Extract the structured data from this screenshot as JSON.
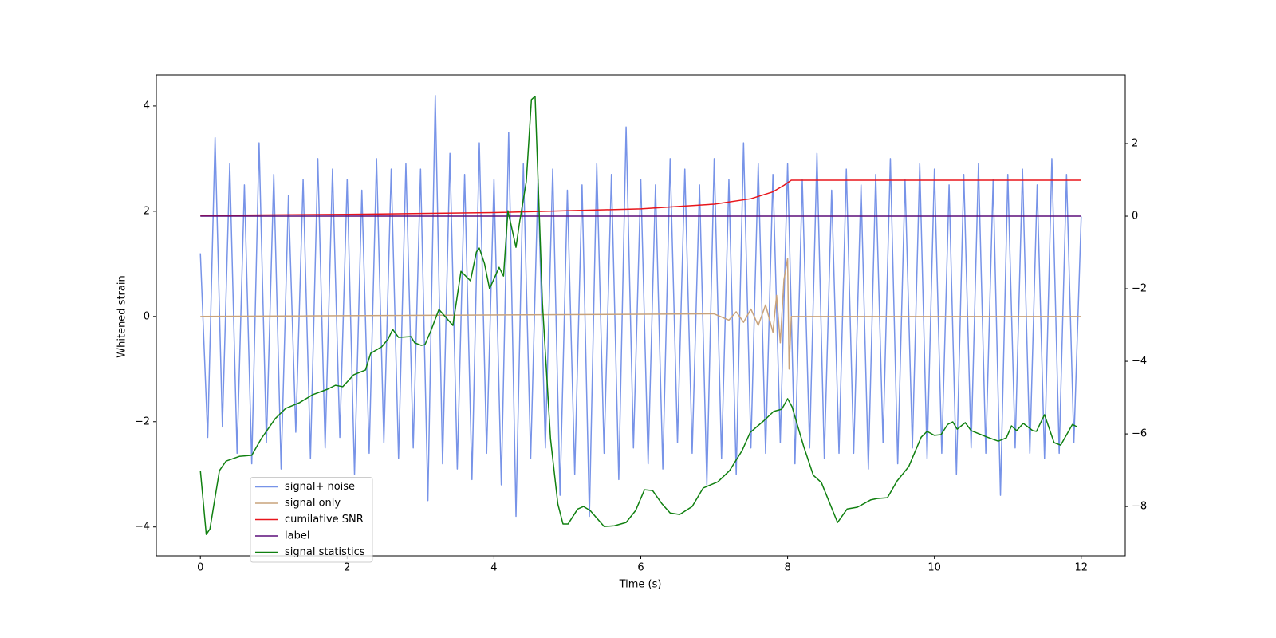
{
  "chart_data": {
    "type": "line",
    "xlabel": "Time (s)",
    "ylabel": "Whitened strain",
    "xlim": [
      -0.6,
      12.6
    ],
    "xticks": [
      0,
      2,
      4,
      6,
      8,
      10,
      12
    ],
    "ylim": [
      -4.55,
      4.59
    ],
    "yticks": [
      {
        "value": -4,
        "label": "−4"
      },
      {
        "value": -2,
        "label": "−2"
      },
      0,
      2,
      4
    ],
    "y2lim": [
      -9.36,
      3.89
    ],
    "y2ticks": [
      {
        "value": -8,
        "label": "−8"
      },
      {
        "value": -6,
        "label": "−6"
      },
      {
        "value": -4,
        "label": "−4"
      },
      {
        "value": -2,
        "label": "−2"
      },
      0,
      2
    ],
    "legend": "lower left",
    "series": [
      {
        "name": "signal+ noise",
        "color": "#7793e8",
        "x": [
          0,
          0.1,
          0.2,
          0.3,
          0.4,
          0.5,
          0.6,
          0.7,
          0.8,
          0.9,
          1,
          1.1,
          1.2,
          1.3,
          1.4,
          1.5,
          1.6,
          1.7,
          1.8,
          1.9,
          2,
          2.1,
          2.2,
          2.3,
          2.4,
          2.5,
          2.6,
          2.7,
          2.8,
          2.9,
          3,
          3.1,
          3.2,
          3.3,
          3.4,
          3.5,
          3.6,
          3.7,
          3.8,
          3.9,
          4,
          4.1,
          4.2,
          4.3,
          4.4,
          4.5,
          4.6,
          4.7,
          4.8,
          4.9,
          5,
          5.1,
          5.2,
          5.3,
          5.4,
          5.5,
          5.6,
          5.7,
          5.8,
          5.9,
          6,
          6.1,
          6.2,
          6.3,
          6.4,
          6.5,
          6.6,
          6.7,
          6.8,
          6.9,
          7,
          7.1,
          7.2,
          7.3,
          7.4,
          7.5,
          7.6,
          7.7,
          7.8,
          7.9,
          8,
          8.1,
          8.2,
          8.3,
          8.4,
          8.5,
          8.6,
          8.7,
          8.8,
          8.9,
          9,
          9.1,
          9.2,
          9.3,
          9.4,
          9.5,
          9.6,
          9.7,
          9.8,
          9.9,
          10,
          10.1,
          10.2,
          10.3,
          10.4,
          10.5,
          10.6,
          10.7,
          10.8,
          10.9,
          11,
          11.1,
          11.2,
          11.3,
          11.4,
          11.5,
          11.6,
          11.7,
          11.8,
          11.9,
          12
        ],
        "values": [
          1.2,
          -2.3,
          3.4,
          -2.1,
          2.9,
          -2.6,
          2.5,
          -2.8,
          3.3,
          -2.4,
          2.7,
          -2.9,
          2.3,
          -2.2,
          2.6,
          -2.7,
          3.0,
          -2.5,
          2.8,
          -2.3,
          2.6,
          -3.0,
          2.4,
          -2.6,
          3.0,
          -2.4,
          2.8,
          -2.7,
          2.9,
          -2.5,
          2.8,
          -3.5,
          4.2,
          -2.8,
          3.1,
          -2.9,
          2.7,
          -3.1,
          3.3,
          -2.6,
          2.6,
          -3.2,
          3.5,
          -3.8,
          2.9,
          -2.7,
          2.6,
          -2.5,
          2.8,
          -3.4,
          2.4,
          -3.0,
          2.5,
          -3.8,
          2.9,
          -2.6,
          2.7,
          -3.1,
          3.6,
          -2.5,
          2.6,
          -2.8,
          2.5,
          -2.9,
          3.0,
          -2.4,
          2.8,
          -2.6,
          2.5,
          -3.2,
          3.0,
          -2.7,
          2.6,
          -3.0,
          3.3,
          -2.5,
          2.9,
          -2.6,
          2.7,
          -2.4,
          2.9,
          -2.8,
          2.6,
          -2.5,
          3.1,
          -2.7,
          2.4,
          -2.6,
          2.8,
          -2.6,
          2.5,
          -2.9,
          2.7,
          -2.4,
          3.0,
          -2.8,
          2.6,
          -2.5,
          2.9,
          -2.7,
          2.8,
          -2.6,
          2.5,
          -3.0,
          2.7,
          -2.5,
          2.9,
          -2.6,
          2.6,
          -3.4,
          2.7,
          -2.5,
          2.8,
          -2.6,
          2.5,
          -2.7,
          3.0,
          -2.6,
          2.7,
          -2.4,
          1.9
        ]
      },
      {
        "name": "signal only",
        "color": "#c9a37b",
        "x": [
          0,
          7,
          7.2,
          7.3,
          7.4,
          7.5,
          7.6,
          7.7,
          7.8,
          7.85,
          7.9,
          7.95,
          8.0,
          8.02,
          8.05,
          12
        ],
        "values": [
          0,
          0.05,
          -0.07,
          0.09,
          -0.11,
          0.14,
          -0.17,
          0.22,
          -0.3,
          0.4,
          -0.5,
          0.7,
          1.1,
          -1,
          0,
          0
        ]
      },
      {
        "name": "cumilative SNR",
        "color": "#e8151b",
        "axis": "y2",
        "x": [
          0,
          2,
          4,
          6,
          7,
          7.5,
          7.8,
          7.95,
          8.05,
          12
        ],
        "values": [
          0.02,
          0.05,
          0.1,
          0.2,
          0.33,
          0.48,
          0.67,
          0.85,
          0.99,
          0.99
        ]
      },
      {
        "name": "label",
        "color": "#5c0f7a",
        "axis": "y2",
        "x": [
          0,
          12
        ],
        "values": [
          0,
          0
        ]
      },
      {
        "name": "signal statistics",
        "color": "#108010",
        "axis": "y2",
        "x": [
          0,
          0.08,
          0.13,
          0.26,
          0.35,
          0.53,
          0.7,
          0.83,
          1.02,
          1.16,
          1.35,
          1.53,
          1.73,
          1.84,
          1.94,
          2.09,
          2.25,
          2.32,
          2.47,
          2.56,
          2.62,
          2.7,
          2.87,
          2.92,
          3.01,
          3.06,
          3.14,
          3.25,
          3.44,
          3.55,
          3.68,
          3.76,
          3.8,
          3.87,
          3.94,
          4.07,
          4.13,
          4.19,
          4.3,
          4.35,
          4.44,
          4.51,
          4.56,
          4.66,
          4.77,
          4.87,
          4.94,
          5.01,
          5.14,
          5.22,
          5.31,
          5.5,
          5.64,
          5.8,
          5.93,
          6.05,
          6.16,
          6.29,
          6.4,
          6.53,
          6.7,
          6.85,
          7.05,
          7.21,
          7.38,
          7.49,
          7.68,
          7.81,
          7.92,
          8.0,
          8.06,
          8.22,
          8.35,
          8.46,
          8.68,
          8.81,
          8.95,
          9.13,
          9.22,
          9.36,
          9.49,
          9.65,
          9.82,
          9.9,
          10.0,
          10.09,
          10.18,
          10.25,
          10.31,
          10.42,
          10.5,
          10.72,
          10.87,
          10.98,
          11.05,
          11.12,
          11.21,
          11.34,
          11.39,
          11.5,
          11.63,
          11.72,
          11.88,
          11.94
        ],
        "values": [
          -7.01,
          -8.77,
          -8.62,
          -7.01,
          -6.75,
          -6.62,
          -6.59,
          -6.13,
          -5.58,
          -5.3,
          -5.14,
          -4.92,
          -4.77,
          -4.66,
          -4.7,
          -4.37,
          -4.24,
          -3.78,
          -3.6,
          -3.38,
          -3.12,
          -3.34,
          -3.32,
          -3.49,
          -3.56,
          -3.54,
          -3.16,
          -2.57,
          -3.01,
          -1.52,
          -1.78,
          -0.99,
          -0.88,
          -1.3,
          -2.0,
          -1.41,
          -1.65,
          0.15,
          -0.86,
          -0.15,
          0.95,
          3.21,
          3.3,
          -2.4,
          -6.13,
          -7.93,
          -8.48,
          -8.48,
          -8.07,
          -8.0,
          -8.11,
          -8.55,
          -8.53,
          -8.44,
          -8.11,
          -7.54,
          -7.56,
          -7.93,
          -8.18,
          -8.22,
          -8.0,
          -7.49,
          -7.32,
          -7.01,
          -6.46,
          -5.96,
          -5.63,
          -5.38,
          -5.32,
          -5.03,
          -5.25,
          -6.35,
          -7.14,
          -7.34,
          -8.44,
          -8.07,
          -8.02,
          -7.82,
          -7.78,
          -7.76,
          -7.3,
          -6.9,
          -6.09,
          -5.93,
          -6.04,
          -6.02,
          -5.74,
          -5.67,
          -5.87,
          -5.69,
          -5.91,
          -6.09,
          -6.2,
          -6.11,
          -5.78,
          -5.91,
          -5.71,
          -5.91,
          -5.93,
          -5.47,
          -6.24,
          -6.31,
          -5.74,
          -5.8
        ]
      }
    ]
  }
}
